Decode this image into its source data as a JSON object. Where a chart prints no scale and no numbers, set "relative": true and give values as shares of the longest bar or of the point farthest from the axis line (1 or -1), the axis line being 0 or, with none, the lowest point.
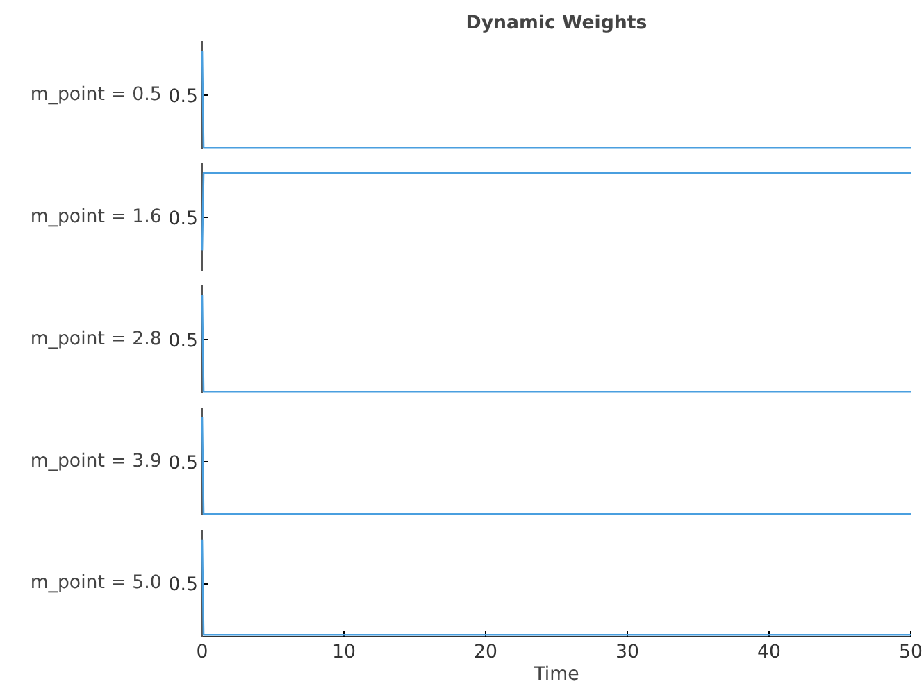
{
  "chart_data": [
    {
      "type": "line",
      "title": "Dynamic Weights",
      "ylabel": "m_point = 0.5",
      "annotations": [
        "0.5"
      ],
      "relative": true,
      "x": [
        0,
        0.1,
        50
      ],
      "series": [
        {
          "color": "#4a9fdf",
          "values": [
            1,
            0,
            0
          ]
        }
      ],
      "xlim": [
        0,
        50
      ],
      "tick_labels": false
    },
    {
      "type": "line",
      "ylabel": "m_point = 1.6",
      "annotations": [
        "0.5"
      ],
      "relative": true,
      "x": [
        0,
        0.1,
        50
      ],
      "series": [
        {
          "color": "#4a9fdf",
          "values": [
            0.2,
            1,
            1
          ]
        }
      ],
      "xlim": [
        0,
        50
      ],
      "tick_labels": false
    },
    {
      "type": "line",
      "ylabel": "m_point = 2.8",
      "annotations": [
        "0.5"
      ],
      "relative": true,
      "x": [
        0,
        0.1,
        50
      ],
      "series": [
        {
          "color": "#4a9fdf",
          "values": [
            1,
            0,
            0
          ]
        }
      ],
      "xlim": [
        0,
        50
      ],
      "tick_labels": false
    },
    {
      "type": "line",
      "ylabel": "m_point = 3.9",
      "annotations": [
        "0.5"
      ],
      "relative": true,
      "x": [
        0,
        0.1,
        50
      ],
      "series": [
        {
          "color": "#4a9fdf",
          "values": [
            1,
            0,
            0
          ]
        }
      ],
      "xlim": [
        0,
        50
      ],
      "tick_labels": false
    },
    {
      "type": "line",
      "ylabel": "m_point = 5.0",
      "xlabel": "Time",
      "annotations": [
        "0.5"
      ],
      "relative": true,
      "x": [
        0,
        0.1,
        50
      ],
      "series": [
        {
          "color": "#4a9fdf",
          "values": [
            1,
            0,
            0
          ]
        }
      ],
      "xlim": [
        0,
        50
      ],
      "xticks": [
        0,
        10,
        20,
        30,
        40,
        50
      ],
      "tick_labels": "x"
    }
  ]
}
